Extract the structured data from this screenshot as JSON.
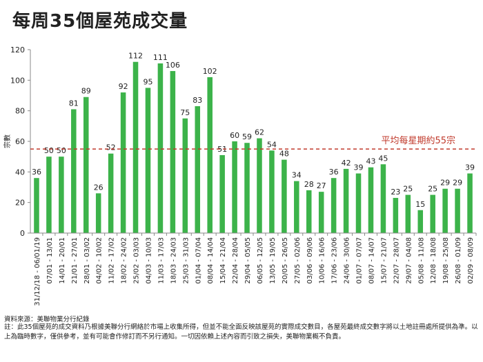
{
  "page": {
    "title": "每周35個屋苑成交量",
    "source": "資料來源：美聯物業分行紀錄",
    "note": "註：此35個屋苑的成交資料乃根據美聯分行網絡於市場上收集所得，但並不能全面反映該屋苑的實際成交數目，各屋苑最終成交數字將以土地註冊處所提供為準。以上為臨時數字，僅供參考，並有可能會作修訂而不另行通知。一切因依賴上述內容而引致之損失，美聯物業概不負責。"
  },
  "colors": {
    "bar": "#3cb34a",
    "avg_line": "#c0392b",
    "axis": "#888888"
  },
  "chart_data": {
    "type": "bar",
    "title": "每周35個屋苑成交量",
    "ylabel": "宗數",
    "xlabel": "",
    "ylim": [
      0,
      120
    ],
    "yticks": [
      0,
      20,
      40,
      60,
      80,
      100,
      120
    ],
    "grid": false,
    "categories": [
      "31/12/18 - 06/01/19",
      "07/01 - 13/01",
      "14/01 - 20/01",
      "21/01 - 27/01",
      "28/01 - 03/02",
      "04/02 - 10/02",
      "11/02 - 17/02",
      "18/02 - 24/02",
      "25/02 - 03/03",
      "04/03 - 10/03",
      "11/03 - 17/03",
      "18/03 - 24/03",
      "25/03 - 31/03",
      "01/04 - 07/04",
      "08/04 - 14/04",
      "15/04 - 21/04",
      "22/04 - 28/04",
      "29/04 - 05/05",
      "06/05 - 12/05",
      "13/05 - 19/05",
      "20/05 - 26/05",
      "27/05 - 02/06",
      "03/06 - 09/06",
      "10/06 - 16/06",
      "17/06 - 23/06",
      "24/06 - 30/06",
      "01/07 - 07/07",
      "08/07 - 14/07",
      "15/07 - 21/07",
      "22/07 - 28/07",
      "29/07 - 04/08",
      "05/08 - 11/08",
      "12/08 - 18/08",
      "19/08 - 25/08",
      "26/08 - 01/09",
      "02/09 - 08/09"
    ],
    "values": [
      36,
      50,
      50,
      81,
      89,
      26,
      52,
      92,
      112,
      95,
      111,
      106,
      75,
      83,
      102,
      51,
      60,
      59,
      62,
      54,
      48,
      34,
      28,
      27,
      36,
      42,
      39,
      43,
      45,
      23,
      25,
      15,
      25,
      29,
      29,
      39
    ],
    "average": 55,
    "average_label": "平均每星期約55宗"
  }
}
